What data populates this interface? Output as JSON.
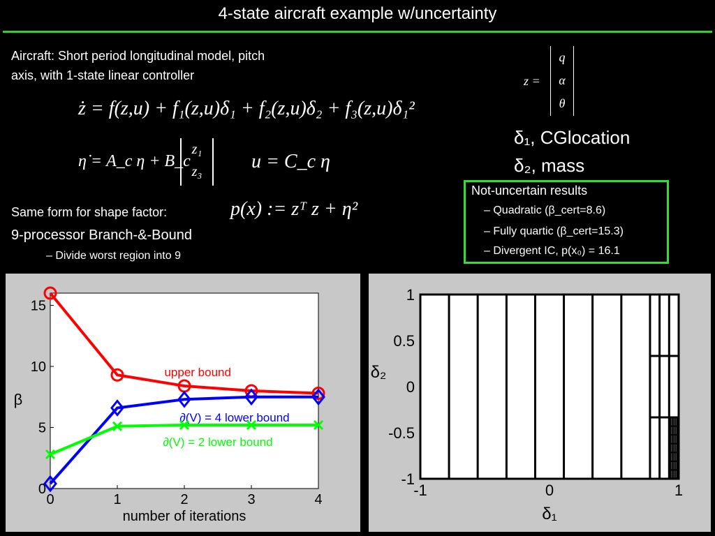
{
  "slide": {
    "title": "4-state aircraft example w/uncertainty",
    "intro_line1": "Aircraft: Short period longitudinal model, pitch",
    "intro_line2": "axis, with 1-state linear controller",
    "eq1": "ż = f(z,u) + f₁(z,u)δ₁ + f₂(z,u)δ₂ + f₃(z,u)δ₁²",
    "eq2_lhs": "η̇ = A_c η + B_c",
    "eq2_vec": [
      "z₁",
      "z₃"
    ],
    "eq3": "u = C_c η",
    "z_def_lhs": "z =",
    "z_vec": [
      "q",
      "α",
      "θ"
    ],
    "delta1_label": "δ₁, CGlocation",
    "delta2_label": "δ₂, mass",
    "shape_factor": "Same form for shape factor:",
    "shape_eq": "p(x) := zᵀ z + η²",
    "bnb": "9-processor Branch-&-Bound",
    "bnb_sub": "– Divide worst region into 9",
    "results": {
      "heading": "Not-uncertain results",
      "items": [
        "– Quadratic (β_cert=8.6)",
        "– Fully quartic (β_cert=15.3)",
        "– Divergent IC, p(x₀) = 16.1"
      ]
    }
  },
  "colors": {
    "accent_green": "#33dd33",
    "red": "#ff0000",
    "blue": "#0000ff",
    "green": "#00ff00"
  },
  "chart_data": [
    {
      "type": "line",
      "xlabel": "number of iterations",
      "ylabel": "β",
      "x": [
        0,
        1,
        2,
        3,
        4
      ],
      "xlim": [
        0,
        4
      ],
      "ylim": [
        0,
        16
      ],
      "xticks": [
        "0",
        "1",
        "2",
        "3",
        "4"
      ],
      "yticks": [
        "0",
        "5",
        "10",
        "15"
      ],
      "grid": false,
      "series": [
        {
          "name": "upper bound",
          "color": "#ff0000",
          "marker": "circle",
          "values": [
            16.0,
            9.3,
            8.4,
            8.0,
            7.8
          ]
        },
        {
          "name": "∂(V) = 4 lower bound",
          "color": "#0000ff",
          "marker": "diamond",
          "values": [
            0.4,
            6.6,
            7.3,
            7.5,
            7.5
          ]
        },
        {
          "name": "∂(V) = 2 lower bound",
          "color": "#00ff00",
          "marker": "x",
          "values": [
            2.8,
            5.1,
            5.2,
            5.2,
            5.2
          ]
        }
      ]
    },
    {
      "type": "partition",
      "xlabel": "δ₁",
      "ylabel": "δ₂",
      "xlim": [
        -1,
        1
      ],
      "ylim": [
        -1,
        1
      ],
      "xticks": [
        "-1",
        "0",
        "1"
      ],
      "yticks": [
        "-1",
        "-0.5",
        "0",
        "0.5",
        "1"
      ],
      "vertical_lines": [
        -0.778,
        -0.556,
        -0.333,
        -0.111,
        0.111,
        0.333,
        0.556,
        0.778,
        0.852,
        0.926
      ],
      "horizontal_segments": [
        {
          "y": 0.333,
          "x0": 0.778,
          "x1": 1.0
        },
        {
          "y": -0.333,
          "x0": 0.778,
          "x1": 1.0
        }
      ],
      "dense_region": {
        "x0": 0.926,
        "x1": 1.0,
        "y0": -1.0,
        "y1": -0.333
      }
    }
  ]
}
